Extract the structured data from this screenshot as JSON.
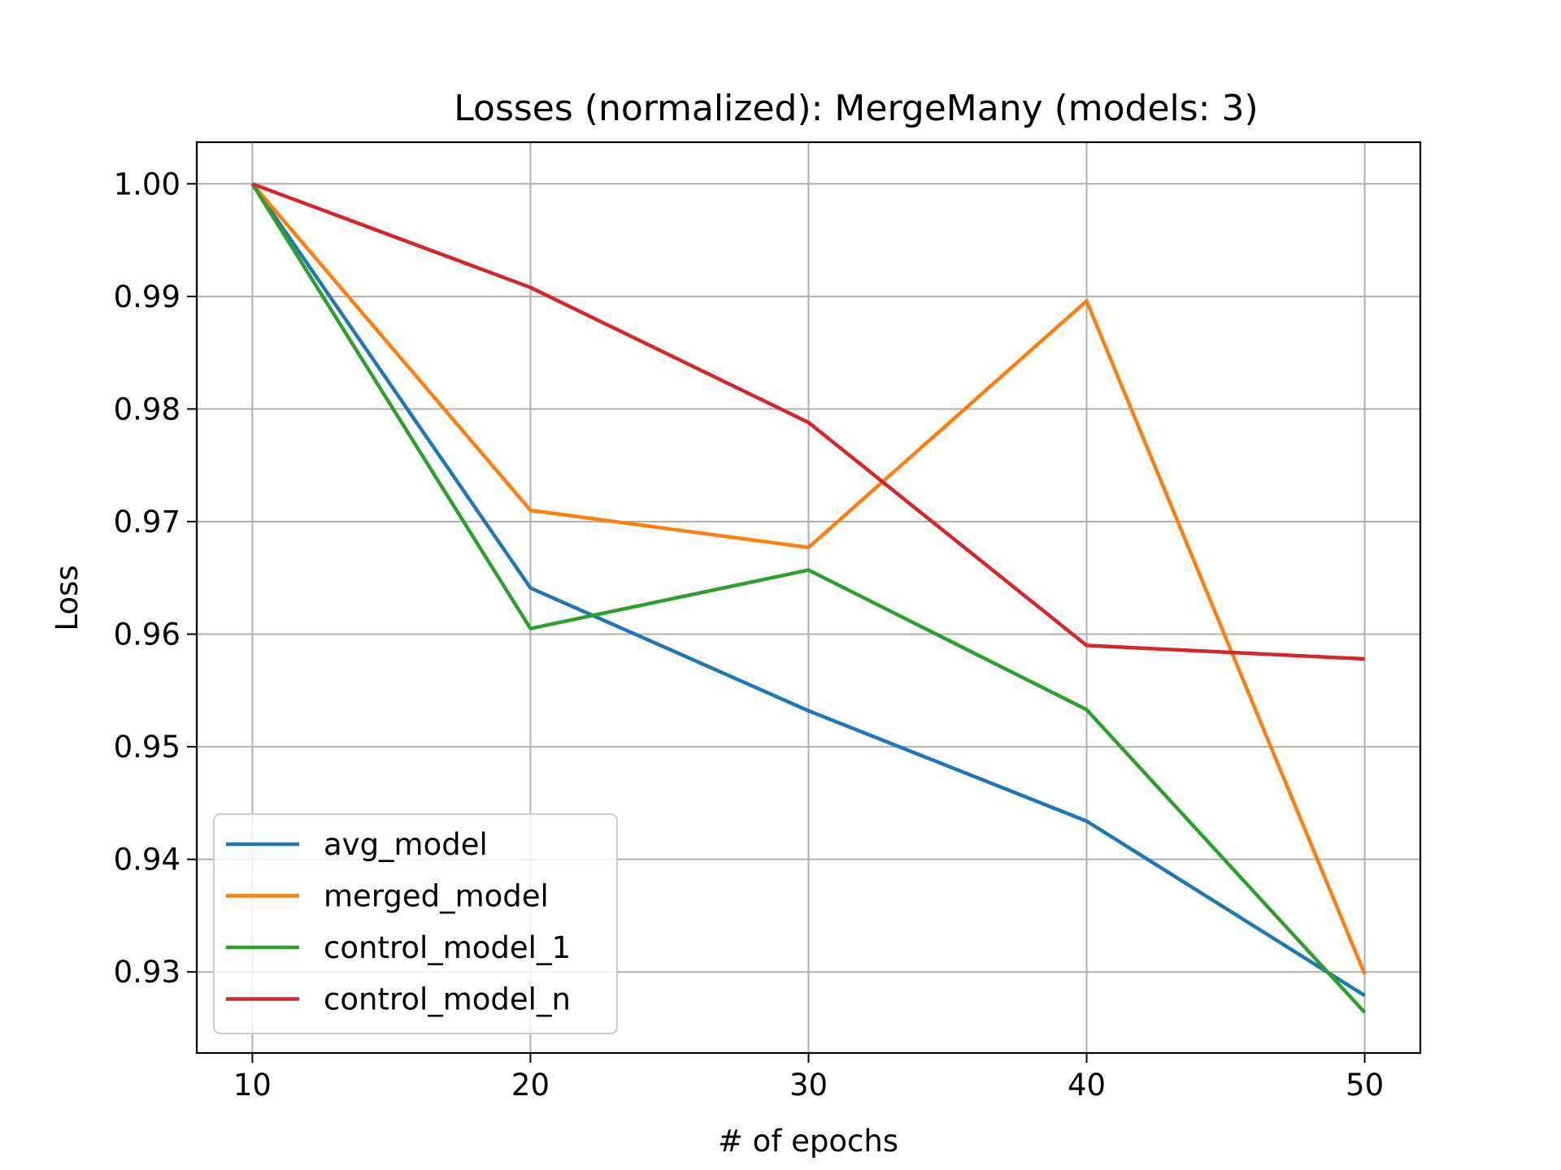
{
  "chart_data": {
    "type": "line",
    "title": "Losses (normalized): MergeMany (models: 3)",
    "xlabel": "# of epochs",
    "ylabel": "Loss",
    "x": [
      10,
      20,
      30,
      40,
      50
    ],
    "xticks": [
      "10",
      "20",
      "30",
      "40",
      "50"
    ],
    "yticks": [
      "0.93",
      "0.94",
      "0.95",
      "0.96",
      "0.97",
      "0.98",
      "0.99",
      "1.00"
    ],
    "xlim": [
      8,
      52
    ],
    "ylim": [
      0.9228,
      1.0037
    ],
    "grid": true,
    "legend_position": "lower-left",
    "series": [
      {
        "name": "avg_model",
        "color": "#1f77b4",
        "values": [
          1.0,
          0.9641,
          0.9532,
          0.9434,
          0.9279
        ]
      },
      {
        "name": "merged_model",
        "color": "#ff7f0e",
        "values": [
          1.0,
          0.971,
          0.9677,
          0.9896,
          0.9298
        ]
      },
      {
        "name": "control_model_1",
        "color": "#2ca02c",
        "values": [
          1.0,
          0.9605,
          0.9657,
          0.9533,
          0.9264
        ]
      },
      {
        "name": "control_model_n",
        "color": "#d62728",
        "values": [
          1.0,
          0.9908,
          0.9788,
          0.959,
          0.9578
        ]
      }
    ]
  }
}
